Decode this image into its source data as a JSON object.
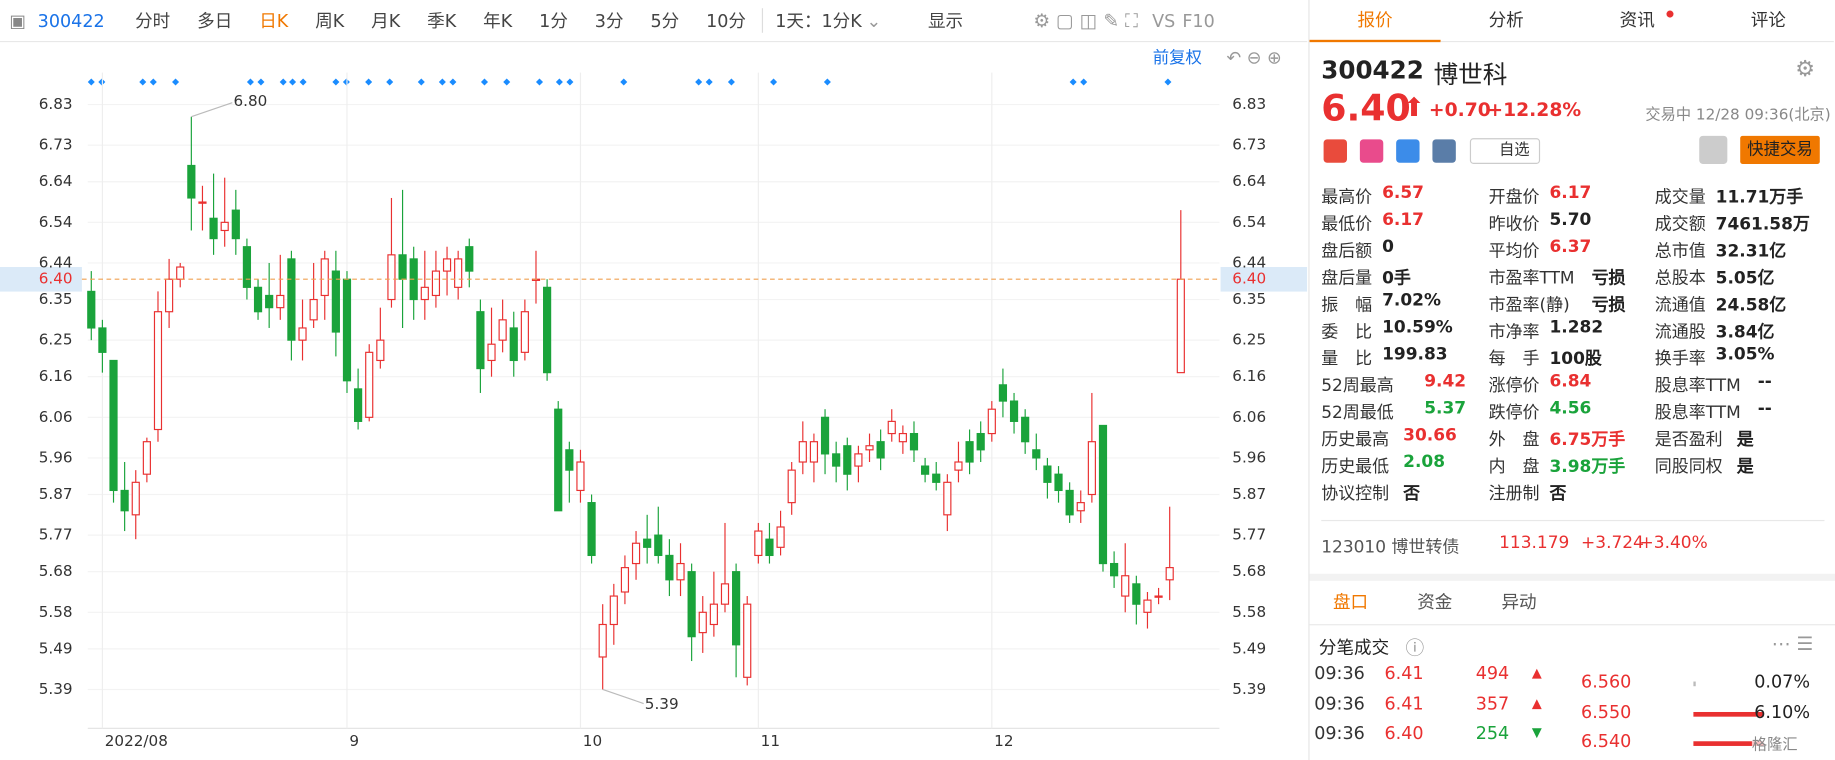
{
  "toolbar": {
    "code": "300422",
    "items": [
      "分时",
      "多日",
      "日K",
      "周K",
      "月K",
      "季K",
      "年K",
      "1分",
      "3分",
      "5分",
      "10分"
    ],
    "period": "1天：1分K",
    "display": "显示",
    "vs": "VS",
    "f10": "F10",
    "adjust": "前复权"
  },
  "chart_data": {
    "type": "candlestick",
    "up_color": "#e93030",
    "down_color": "#1aa33b",
    "ylim": [
      5.3,
      6.9
    ],
    "yticks": [
      6.83,
      6.73,
      6.64,
      6.54,
      6.44,
      6.35,
      6.25,
      6.16,
      6.06,
      5.96,
      5.87,
      5.77,
      5.68,
      5.58,
      5.49,
      5.39
    ],
    "categories": [
      null,
      "2022/08",
      null,
      null,
      null,
      null,
      null,
      null,
      null,
      null,
      null,
      null,
      null,
      null,
      null,
      null,
      null,
      null,
      null,
      null,
      null,
      null,
      null,
      "9",
      null,
      null,
      null,
      null,
      null,
      null,
      null,
      null,
      null,
      null,
      null,
      null,
      null,
      null,
      null,
      null,
      null,
      null,
      null,
      null,
      "10",
      null,
      null,
      null,
      null,
      null,
      null,
      null,
      null,
      null,
      null,
      null,
      null,
      null,
      null,
      null,
      "11",
      null,
      null,
      null,
      null,
      null,
      null,
      null,
      null,
      null,
      null,
      null,
      null,
      null,
      null,
      null,
      null,
      null,
      null,
      null,
      null,
      "12",
      null,
      null,
      null,
      null,
      null,
      null,
      null,
      null,
      null,
      null,
      null,
      null,
      null,
      null,
      null,
      null,
      null
    ],
    "open": [
      6.37,
      6.28,
      6.2,
      5.88,
      5.82,
      5.92,
      6.03,
      6.32,
      6.4,
      6.68,
      6.59,
      6.55,
      6.52,
      6.57,
      6.48,
      6.38,
      6.36,
      6.33,
      6.45,
      6.25,
      6.3,
      6.36,
      6.42,
      6.4,
      6.13,
      6.06,
      6.2,
      6.35,
      6.46,
      6.45,
      6.35,
      6.36,
      6.42,
      6.38,
      6.48,
      6.32,
      6.2,
      6.25,
      6.28,
      6.22,
      6.4,
      6.38,
      6.08,
      5.98,
      5.88,
      5.85,
      5.47,
      5.55,
      5.63,
      5.7,
      5.76,
      5.77,
      5.72,
      5.66,
      5.68,
      5.53,
      5.55,
      5.6,
      5.68,
      5.42,
      5.72,
      5.76,
      5.74,
      5.85,
      5.95,
      5.95,
      6.06,
      5.97,
      5.99,
      5.94,
      5.98,
      6.0,
      6.02,
      6.0,
      6.02,
      5.94,
      5.92,
      5.82,
      5.93,
      6.0,
      6.02,
      6.02,
      6.14,
      6.1,
      6.06,
      5.98,
      5.94,
      5.92,
      5.88,
      5.83,
      5.87,
      6.04,
      5.7,
      5.62,
      5.65,
      5.58,
      5.62,
      5.66,
      6.17
    ],
    "high": [
      6.42,
      6.3,
      6.2,
      5.95,
      5.93,
      6.01,
      6.37,
      6.45,
      6.44,
      6.8,
      6.63,
      6.66,
      6.65,
      6.62,
      6.5,
      6.4,
      6.44,
      6.46,
      6.47,
      6.35,
      6.44,
      6.47,
      6.47,
      6.42,
      6.18,
      6.24,
      6.33,
      6.6,
      6.62,
      6.48,
      6.47,
      6.47,
      6.48,
      6.47,
      6.5,
      6.35,
      6.33,
      6.35,
      6.32,
      6.35,
      6.47,
      6.4,
      6.1,
      6.0,
      5.98,
      5.87,
      5.6,
      5.65,
      5.72,
      5.78,
      5.82,
      5.84,
      5.76,
      5.75,
      5.7,
      5.62,
      5.68,
      5.8,
      5.7,
      5.62,
      5.8,
      5.8,
      5.83,
      5.95,
      6.05,
      6.02,
      6.08,
      6.0,
      6.01,
      5.99,
      6.02,
      6.03,
      6.08,
      6.04,
      6.05,
      5.96,
      5.95,
      5.92,
      6.0,
      6.03,
      6.05,
      6.1,
      6.18,
      6.12,
      6.08,
      6.02,
      5.96,
      5.94,
      5.9,
      5.88,
      6.12,
      6.04,
      5.73,
      5.75,
      5.67,
      5.63,
      5.64,
      5.84,
      6.57
    ],
    "low": [
      6.25,
      6.17,
      5.85,
      5.78,
      5.76,
      5.9,
      6.0,
      6.28,
      6.38,
      6.52,
      6.52,
      6.46,
      6.48,
      6.46,
      6.35,
      6.3,
      6.28,
      6.3,
      6.2,
      6.2,
      6.28,
      6.3,
      6.21,
      6.12,
      6.03,
      6.05,
      6.18,
      6.33,
      6.28,
      6.3,
      6.3,
      6.33,
      6.36,
      6.35,
      6.38,
      6.12,
      6.16,
      6.22,
      6.16,
      6.2,
      6.34,
      6.15,
      5.83,
      5.85,
      5.85,
      5.7,
      5.39,
      5.5,
      5.6,
      5.66,
      5.7,
      5.7,
      5.62,
      5.62,
      5.46,
      5.48,
      5.52,
      5.58,
      5.42,
      5.4,
      5.7,
      5.7,
      5.72,
      5.82,
      5.92,
      5.9,
      5.92,
      5.9,
      5.88,
      5.9,
      5.95,
      5.93,
      6.0,
      5.97,
      5.95,
      5.9,
      5.88,
      5.78,
      5.9,
      5.92,
      5.95,
      6.0,
      6.06,
      6.02,
      5.97,
      5.93,
      5.86,
      5.85,
      5.8,
      5.8,
      5.85,
      5.68,
      5.64,
      5.58,
      5.55,
      5.54,
      5.6,
      5.61,
      6.17
    ],
    "close": [
      6.28,
      6.22,
      5.88,
      5.83,
      5.9,
      6.0,
      6.32,
      6.4,
      6.43,
      6.6,
      6.59,
      6.5,
      6.54,
      6.5,
      6.38,
      6.32,
      6.33,
      6.36,
      6.25,
      6.28,
      6.35,
      6.45,
      6.27,
      6.15,
      6.05,
      6.22,
      6.25,
      6.46,
      6.4,
      6.35,
      6.38,
      6.42,
      6.45,
      6.45,
      6.42,
      6.18,
      6.24,
      6.3,
      6.2,
      6.32,
      6.4,
      6.17,
      5.83,
      5.93,
      5.95,
      5.72,
      5.55,
      5.62,
      5.69,
      5.75,
      5.74,
      5.72,
      5.66,
      5.7,
      5.52,
      5.58,
      5.6,
      5.65,
      5.5,
      5.6,
      5.78,
      5.72,
      5.79,
      5.93,
      6.0,
      6.0,
      5.97,
      5.94,
      5.92,
      5.97,
      5.99,
      5.96,
      6.05,
      6.02,
      5.98,
      5.92,
      5.9,
      5.9,
      5.95,
      5.95,
      5.98,
      6.08,
      6.1,
      6.05,
      6.0,
      5.96,
      5.9,
      5.88,
      5.82,
      5.85,
      6.0,
      5.7,
      5.67,
      5.67,
      5.6,
      5.61,
      5.62,
      5.69,
      6.4
    ],
    "max_label": {
      "value": 6.8,
      "label": "6.80"
    },
    "min_label": 5.39,
    "last_price": {
      "value": 6.4,
      "label": "6.40"
    }
  },
  "quote": {
    "tabs": [
      "报价",
      "分析",
      "资讯",
      "评论"
    ],
    "code": "300422",
    "name": "博世科",
    "price": "6.40",
    "change": "+0.70",
    "change_pct": "+12.28%",
    "status": "交易中 12/28 09:36(北京)",
    "watch": "自选",
    "trade": "快捷交易",
    "stats": [
      [
        {
          "label": "最高价",
          "value": "6.57",
          "color": "#e93030"
        },
        {
          "label": "最低价",
          "value": "6.17",
          "color": "#e93030"
        },
        {
          "label": "盘后额",
          "value": "0",
          "color": "#222"
        },
        {
          "label": "盘后量",
          "value": "0手",
          "color": "#222"
        },
        {
          "label": "振　幅",
          "value": "7.02%",
          "color": "#222"
        },
        {
          "label": "委　比",
          "value": "10.59%",
          "color": "#222"
        },
        {
          "label": "量　比",
          "value": "199.83",
          "color": "#222"
        },
        {
          "label": "52周最高",
          "value": "9.42",
          "color": "#e93030"
        },
        {
          "label": "52周最低",
          "value": "5.37",
          "color": "#1aa33b"
        },
        {
          "label": "历史最高",
          "value": "30.66",
          "color": "#e93030"
        },
        {
          "label": "历史最低",
          "value": "2.08",
          "color": "#1aa33b"
        },
        {
          "label": "协议控制",
          "value": "否",
          "color": "#222"
        }
      ],
      [
        {
          "label": "开盘价",
          "value": "6.17",
          "color": "#e93030"
        },
        {
          "label": "昨收价",
          "value": "5.70",
          "color": "#222"
        },
        {
          "label": "平均价",
          "value": "6.37",
          "color": "#e93030"
        },
        {
          "label": "市盈率TTM",
          "value": "亏损",
          "color": "#222"
        },
        {
          "label": "市盈率(静)",
          "value": "亏损",
          "color": "#222"
        },
        {
          "label": "市净率",
          "value": "1.282",
          "color": "#222"
        },
        {
          "label": "每　手",
          "value": "100股",
          "color": "#222"
        },
        {
          "label": "涨停价",
          "value": "6.84",
          "color": "#e93030"
        },
        {
          "label": "跌停价",
          "value": "4.56",
          "color": "#1aa33b"
        },
        {
          "label": "外　盘",
          "value": "6.75万手",
          "color": "#e93030"
        },
        {
          "label": "内　盘",
          "value": "3.98万手",
          "color": "#1aa33b"
        },
        {
          "label": "注册制",
          "value": "否",
          "color": "#222"
        }
      ],
      [
        {
          "label": "成交量",
          "value": "11.71万手",
          "color": "#222"
        },
        {
          "label": "成交额",
          "value": "7461.58万",
          "color": "#222"
        },
        {
          "label": "总市值",
          "value": "32.31亿",
          "color": "#222"
        },
        {
          "label": "总股本",
          "value": "5.05亿",
          "color": "#222"
        },
        {
          "label": "流通值",
          "value": "24.58亿",
          "color": "#222"
        },
        {
          "label": "流通股",
          "value": "3.84亿",
          "color": "#222"
        },
        {
          "label": "换手率",
          "value": "3.05%",
          "color": "#222"
        },
        {
          "label": "股息率TTM",
          "value": "--",
          "color": "#222"
        },
        {
          "label": "股息率TTM",
          "value": "--",
          "color": "#222"
        },
        {
          "label": "是否盈利",
          "value": "是",
          "color": "#222"
        },
        {
          "label": "同股同权",
          "value": "是",
          "color": "#222"
        }
      ]
    ],
    "bond": {
      "name": "123010 博世转债",
      "price": "113.179",
      "change": "+3.724",
      "change_pct": "+3.40%"
    },
    "tabs2": [
      "盘口",
      "资金",
      "异动"
    ],
    "ticks_title": "分笔成交",
    "trades": [
      {
        "time": "09:36",
        "price": "6.41",
        "volume": "494",
        "dir": "up"
      },
      {
        "time": "09:36",
        "price": "6.41",
        "volume": "357",
        "dir": "up"
      },
      {
        "time": "09:36",
        "price": "6.40",
        "volume": "254",
        "dir": "down"
      }
    ],
    "book": [
      {
        "price": "6.560",
        "pct": "0.07%"
      },
      {
        "price": "6.550",
        "pct": "6.10%"
      },
      {
        "price": "6.540"
      }
    ],
    "watermark": "格隆汇"
  }
}
